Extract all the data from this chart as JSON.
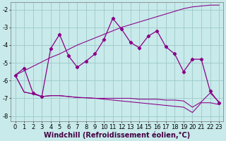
{
  "x": [
    0,
    1,
    2,
    3,
    4,
    5,
    6,
    7,
    8,
    9,
    10,
    11,
    12,
    13,
    14,
    15,
    16,
    17,
    18,
    19,
    20,
    21,
    22,
    23
  ],
  "line_volatile": [
    -5.7,
    -5.3,
    -6.7,
    -6.9,
    -4.2,
    -3.4,
    -4.6,
    -5.25,
    -4.9,
    -4.5,
    -3.7,
    -2.5,
    -3.1,
    -3.85,
    -4.15,
    -3.5,
    -3.2,
    -4.1,
    -4.5,
    -5.5,
    -4.8,
    -4.8,
    -6.6,
    -7.25
  ],
  "line_rising": [
    -5.7,
    -5.45,
    -5.2,
    -4.95,
    -4.7,
    -4.5,
    -4.25,
    -4.0,
    -3.8,
    -3.6,
    -3.4,
    -3.2,
    -3.0,
    -2.85,
    -2.7,
    -2.55,
    -2.4,
    -2.25,
    -2.1,
    -1.95,
    -1.85,
    -1.8,
    -1.75,
    -1.75
  ],
  "line_flat_upper": [
    -5.7,
    -6.65,
    -6.75,
    -6.9,
    -6.85,
    -6.85,
    -6.9,
    -6.95,
    -6.97,
    -7.0,
    -7.0,
    -7.0,
    -7.0,
    -7.0,
    -7.05,
    -7.05,
    -7.05,
    -7.1,
    -7.1,
    -7.15,
    -7.5,
    -7.2,
    -6.7,
    -7.2
  ],
  "line_declining": [
    -5.7,
    -6.65,
    -6.75,
    -6.9,
    -6.85,
    -6.85,
    -6.9,
    -6.95,
    -6.97,
    -7.0,
    -7.05,
    -7.1,
    -7.15,
    -7.2,
    -7.25,
    -7.3,
    -7.35,
    -7.4,
    -7.45,
    -7.5,
    -7.8,
    -7.25,
    -7.25,
    -7.35
  ],
  "color": "#880088",
  "bg_color": "#c8eaea",
  "grid_color": "#9dc8c8",
  "xlabel": "Windchill (Refroidissement éolien,°C)",
  "xlim": [
    -0.5,
    23.5
  ],
  "ylim": [
    -8.3,
    -1.6
  ],
  "yticks": [
    -8,
    -7,
    -6,
    -5,
    -4,
    -3,
    -2
  ],
  "xticks": [
    0,
    1,
    2,
    3,
    4,
    5,
    6,
    7,
    8,
    9,
    10,
    11,
    12,
    13,
    14,
    15,
    16,
    17,
    18,
    19,
    20,
    21,
    22,
    23
  ],
  "tick_fontsize": 6.0,
  "xlabel_fontsize": 7.0,
  "linewidth": 0.9,
  "markersize": 2.2
}
